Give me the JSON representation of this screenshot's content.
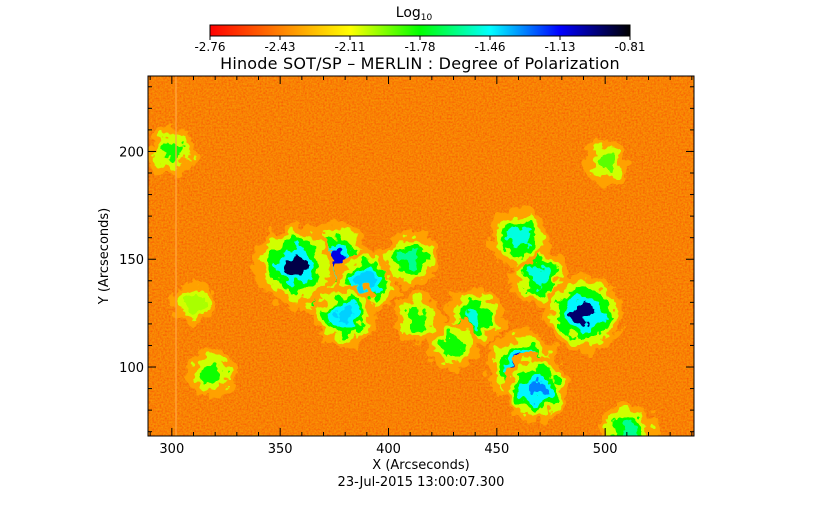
{
  "chart_data": {
    "type": "heatmap",
    "title": "Hinode SOT/SP – MERLIN : Degree of Polarization",
    "xlabel": "X (Arcseconds)",
    "ylabel": "Y (Arcseconds)",
    "date": "23-Jul-2015 13:00:07.300",
    "xlim": [
      289,
      541
    ],
    "ylim": [
      68,
      235
    ],
    "x_ticks": [
      300,
      350,
      400,
      450,
      500
    ],
    "y_ticks": [
      100,
      150,
      200
    ],
    "colorbar": {
      "title": "Log",
      "title_subscript": "10",
      "range": [
        -2.76,
        -0.81
      ],
      "ticks": [
        "-2.76",
        "-2.43",
        "-2.11",
        "-1.78",
        "-1.46",
        "-1.13",
        "-0.81"
      ],
      "colormap": [
        "#ff0000",
        "#ff8000",
        "#ffff00",
        "#00ff00",
        "#00ffff",
        "#0000ff",
        "#000000"
      ]
    },
    "features": [
      {
        "x": 368,
        "y": 140,
        "value": -1.2
      },
      {
        "x": 360,
        "y": 148,
        "value": -1.0
      },
      {
        "x": 375,
        "y": 150,
        "value": -1.1
      },
      {
        "x": 357,
        "y": 147,
        "value": -0.9
      },
      {
        "x": 390,
        "y": 140,
        "value": -1.4
      },
      {
        "x": 380,
        "y": 124,
        "value": -1.4
      },
      {
        "x": 410,
        "y": 150,
        "value": -1.6
      },
      {
        "x": 413,
        "y": 123,
        "value": -1.8
      },
      {
        "x": 440,
        "y": 123,
        "value": -1.5
      },
      {
        "x": 430,
        "y": 110,
        "value": -1.8
      },
      {
        "x": 462,
        "y": 100,
        "value": -1.1
      },
      {
        "x": 468,
        "y": 90,
        "value": -1.3
      },
      {
        "x": 470,
        "y": 142,
        "value": -1.5
      },
      {
        "x": 460,
        "y": 160,
        "value": -1.5
      },
      {
        "x": 490,
        "y": 125,
        "value": -0.95
      },
      {
        "x": 300,
        "y": 200,
        "value": -1.8
      },
      {
        "x": 310,
        "y": 130,
        "value": -2.0
      },
      {
        "x": 318,
        "y": 97,
        "value": -1.8
      },
      {
        "x": 500,
        "y": 195,
        "value": -1.9
      },
      {
        "x": 510,
        "y": 70,
        "value": -1.6
      }
    ]
  }
}
